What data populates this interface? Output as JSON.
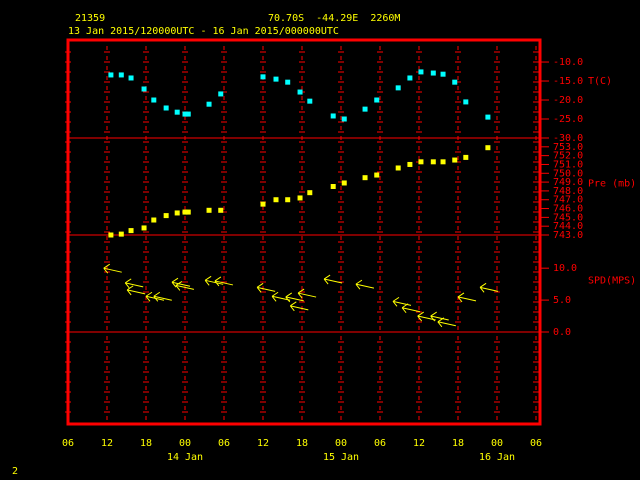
{
  "header": {
    "station": "21359",
    "location": "70.70S  -44.29E  2260M",
    "period": "13 Jan 2015/120000UTC - 16 Jan 2015/000000UTC",
    "page": "2"
  },
  "chart_data": [
    {
      "type": "scatter",
      "y_label": "T(C)",
      "marker": "square",
      "series": [
        {
          "name": "T(C)",
          "color": "#00ffff",
          "x": [
            12.6,
            14.2,
            15.7,
            17.7,
            19.2,
            21.1,
            22.8,
            24.0,
            24.5,
            27.7,
            29.5,
            36.0,
            38.0,
            39.8,
            41.7,
            43.2,
            46.8,
            48.5,
            51.7,
            53.5,
            56.8,
            58.6,
            60.3,
            62.2,
            63.7,
            65.5,
            67.2,
            70.6
          ],
          "values": [
            -13.4,
            -13.4,
            -14.2,
            -17.1,
            -20.0,
            -22.1,
            -23.2,
            -23.7,
            -23.7,
            -21.1,
            -18.4,
            -13.9,
            -14.5,
            -15.3,
            -17.9,
            -20.3,
            -24.2,
            -25.0,
            -22.4,
            -20.0,
            -16.8,
            -14.2,
            -12.6,
            -12.9,
            -13.2,
            -15.3,
            -20.5,
            -24.5
          ]
        }
      ],
      "xlim": [
        6,
        78
      ],
      "ylim": [
        -30,
        -4.2
      ],
      "yticks": [
        {
          "value": -10,
          "label": "-10.0"
        },
        {
          "value": -15,
          "label": "-15.0"
        },
        {
          "value": -20,
          "label": "-20.0"
        },
        {
          "value": -25,
          "label": "-25.0"
        },
        {
          "value": -30,
          "label": "-30.0"
        }
      ]
    },
    {
      "type": "scatter",
      "y_label": "Pre (mb)",
      "marker": "square",
      "series": [
        {
          "name": "Pre (mb)",
          "color": "#ffff00",
          "x": [
            12.6,
            14.2,
            15.7,
            17.7,
            19.2,
            21.1,
            22.8,
            24.0,
            24.5,
            27.7,
            29.5,
            36.0,
            38.0,
            39.8,
            41.7,
            43.2,
            46.8,
            48.5,
            51.7,
            53.5,
            56.8,
            58.6,
            60.3,
            62.2,
            63.7,
            65.5,
            67.2,
            70.6
          ],
          "values": [
            743.0,
            743.1,
            743.5,
            743.8,
            744.7,
            745.2,
            745.5,
            745.6,
            745.6,
            745.8,
            745.8,
            746.5,
            747.0,
            747.0,
            747.2,
            747.8,
            748.5,
            748.9,
            749.5,
            749.8,
            750.6,
            751.0,
            751.3,
            751.3,
            751.3,
            751.5,
            751.8,
            752.9
          ]
        }
      ],
      "xlim": [
        6,
        78
      ],
      "ylim": [
        743,
        754.0
      ],
      "yticks": [
        {
          "value": 743,
          "label": "743.0"
        },
        {
          "value": 744,
          "label": "744.0"
        },
        {
          "value": 745,
          "label": "745.0"
        },
        {
          "value": 746,
          "label": "746.0"
        },
        {
          "value": 747,
          "label": "747.0"
        },
        {
          "value": 748,
          "label": "748.0"
        },
        {
          "value": 749,
          "label": "749.0"
        },
        {
          "value": 750,
          "label": "750.0"
        },
        {
          "value": 751,
          "label": "751.0"
        },
        {
          "value": 752,
          "label": "752.0"
        },
        {
          "value": 753,
          "label": "753.0"
        }
      ]
    },
    {
      "type": "wind",
      "y_label": "SPD(MPS)",
      "series": [
        {
          "name": "SPD(MPS)",
          "color": "#ffff00",
          "x": [
            11.5,
            14.8,
            15.1,
            18.0,
            19.2,
            22.0,
            22.6,
            27.1,
            28.6,
            35.1,
            37.4,
            39.5,
            40.2,
            41.4,
            45.4,
            50.3,
            56.0,
            57.4,
            59.8,
            61.8,
            62.9,
            66.0,
            69.4
          ],
          "values": [
            10.0,
            7.7,
            6.6,
            5.6,
            5.6,
            7.8,
            7.3,
            8.1,
            8.0,
            7.0,
            5.6,
            5.5,
            4.1,
            6.1,
            8.3,
            7.5,
            4.8,
            3.8,
            2.5,
            2.5,
            1.6,
            5.5,
            7.0
          ]
        }
      ],
      "xlim": [
        6,
        78
      ],
      "ylim": [
        0,
        15.2
      ],
      "yticks": [
        {
          "value": 0,
          "label": "0.0"
        },
        {
          "value": 5,
          "label": "5.0"
        },
        {
          "value": 10,
          "label": "10.0"
        }
      ],
      "xticks": [
        {
          "value": 6,
          "label": "06"
        },
        {
          "value": 12,
          "label": "12"
        },
        {
          "value": 18,
          "label": "18"
        },
        {
          "value": 24,
          "label": "00"
        },
        {
          "value": 30,
          "label": "06"
        },
        {
          "value": 36,
          "label": "12"
        },
        {
          "value": 42,
          "label": "18"
        },
        {
          "value": 48,
          "label": "00"
        },
        {
          "value": 54,
          "label": "06"
        },
        {
          "value": 60,
          "label": "12"
        },
        {
          "value": 66,
          "label": "18"
        },
        {
          "value": 72,
          "label": "00"
        },
        {
          "value": 78,
          "label": "06"
        }
      ],
      "xdates": [
        {
          "value": 24,
          "label": "14 Jan"
        },
        {
          "value": 48,
          "label": "15 Jan"
        },
        {
          "value": 72,
          "label": "16 Jan"
        }
      ]
    }
  ]
}
